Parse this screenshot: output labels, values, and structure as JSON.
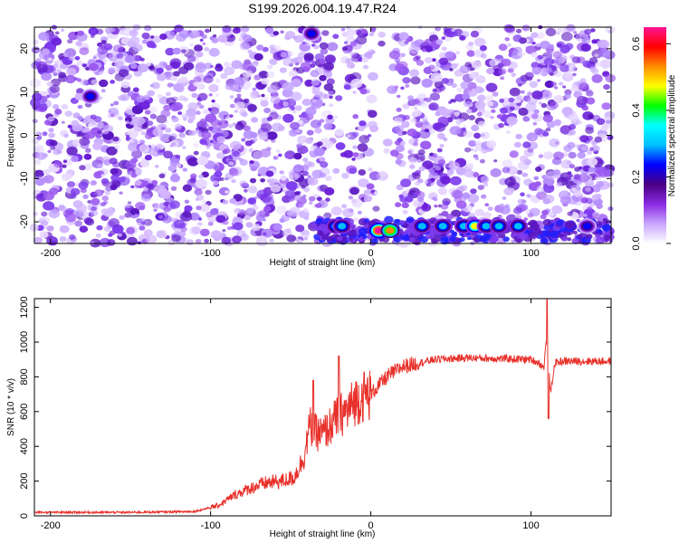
{
  "figure_title": "S199.2026.004.19.47.R24",
  "chart_data": [
    {
      "type": "heatmap",
      "xlabel": "Height of straight line (km)",
      "ylabel": "Frequency (Hz)",
      "xlim": [
        -210,
        150
      ],
      "ylim": [
        -25,
        25
      ],
      "xticks": [
        -200,
        -100,
        0,
        100
      ],
      "yticks": [
        -20,
        -10,
        0,
        10,
        20
      ],
      "colorbar": {
        "label": "Normalized spectral amplitude",
        "range": [
          0,
          0.65
        ],
        "ticks": [
          "0.0",
          "0.2",
          "0.4",
          "0.6"
        ],
        "colors": [
          "#ffffff",
          "#c9a6ff",
          "#8a2be2",
          "#4b0082",
          "#0000ff",
          "#00bfff",
          "#00ffff",
          "#00ff00",
          "#ffff00",
          "#ff8c00",
          "#ff0000",
          "#ff1493"
        ]
      },
      "hotspots": [
        {
          "x": 5,
          "y": -22,
          "value": 0.65
        },
        {
          "x": 12,
          "y": -22,
          "value": 0.55
        },
        {
          "x": -22,
          "y": -21,
          "value": 0.3
        },
        {
          "x": -18,
          "y": -21,
          "value": 0.3
        },
        {
          "x": 32,
          "y": -21,
          "value": 0.3
        },
        {
          "x": 45,
          "y": -21,
          "value": 0.3
        },
        {
          "x": 58,
          "y": -21,
          "value": 0.3
        },
        {
          "x": 65,
          "y": -21,
          "value": 0.45
        },
        {
          "x": 72,
          "y": -21,
          "value": 0.3
        },
        {
          "x": 80,
          "y": -21,
          "value": 0.3
        },
        {
          "x": 92,
          "y": -21,
          "value": 0.3
        },
        {
          "x": -37,
          "y": 23.5,
          "value": 0.25
        },
        {
          "x": -175,
          "y": 9,
          "value": 0.25
        },
        {
          "x": 135,
          "y": -21,
          "value": 0.25
        }
      ]
    },
    {
      "type": "line",
      "xlabel": "Height of straight line (km)",
      "ylabel": "SNR (10 * v/v)",
      "xlim": [
        -210,
        150
      ],
      "ylim": [
        0,
        1250
      ],
      "xticks": [
        -200,
        -100,
        0,
        100
      ],
      "yticks": [
        0,
        200,
        400,
        600,
        800,
        1000,
        1200
      ],
      "series_color": "#e8302a",
      "x": [
        -210,
        -150,
        -110,
        -95,
        -85,
        -75,
        -65,
        -55,
        -48,
        -42,
        -38,
        -35,
        -30,
        -25,
        -20,
        -15,
        -10,
        -5,
        0,
        10,
        20,
        30,
        40,
        50,
        60,
        80,
        100,
        105,
        108,
        110,
        112,
        115,
        120,
        130,
        140,
        150
      ],
      "values": [
        20,
        20,
        25,
        60,
        120,
        160,
        190,
        200,
        220,
        330,
        520,
        480,
        470,
        520,
        580,
        600,
        660,
        690,
        700,
        800,
        860,
        880,
        900,
        905,
        910,
        905,
        900,
        880,
        850,
        1050,
        700,
        880,
        890,
        890,
        890,
        890
      ],
      "spikes": [
        {
          "x": -36,
          "value": 780
        },
        {
          "x": -20,
          "value": 920
        },
        {
          "x": 110,
          "value": 1250
        },
        {
          "x": 111,
          "value": 560
        }
      ]
    }
  ]
}
